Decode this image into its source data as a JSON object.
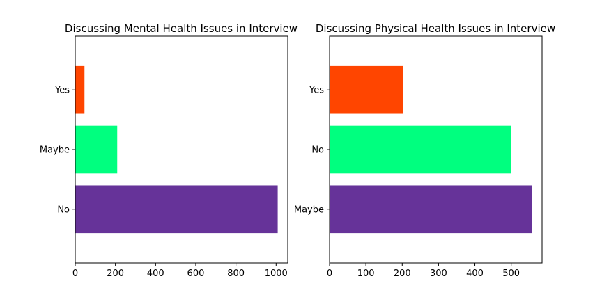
{
  "chart_data": [
    {
      "type": "bar",
      "orientation": "horizontal",
      "title": "Discussing Mental Health Issues in Interview",
      "xlabel": "",
      "ylabel": "",
      "categories": [
        "No",
        "Maybe",
        "Yes"
      ],
      "values": [
        1008,
        209,
        46
      ],
      "colors": [
        "#663399",
        "#00ff7f",
        "#ff4500"
      ],
      "xlim": [
        0,
        1058
      ],
      "xticks": [
        0,
        200,
        400,
        600,
        800,
        1000
      ],
      "grid": false
    },
    {
      "type": "bar",
      "orientation": "horizontal",
      "title": "Discussing Physical Health Issues in Interview",
      "xlabel": "",
      "ylabel": "",
      "categories": [
        "Maybe",
        "No",
        "Yes"
      ],
      "values": [
        557,
        500,
        202
      ],
      "colors": [
        "#663399",
        "#00ff7f",
        "#ff4500"
      ],
      "xlim": [
        0,
        585
      ],
      "xticks": [
        0,
        100,
        200,
        300,
        400,
        500
      ],
      "grid": false
    }
  ]
}
